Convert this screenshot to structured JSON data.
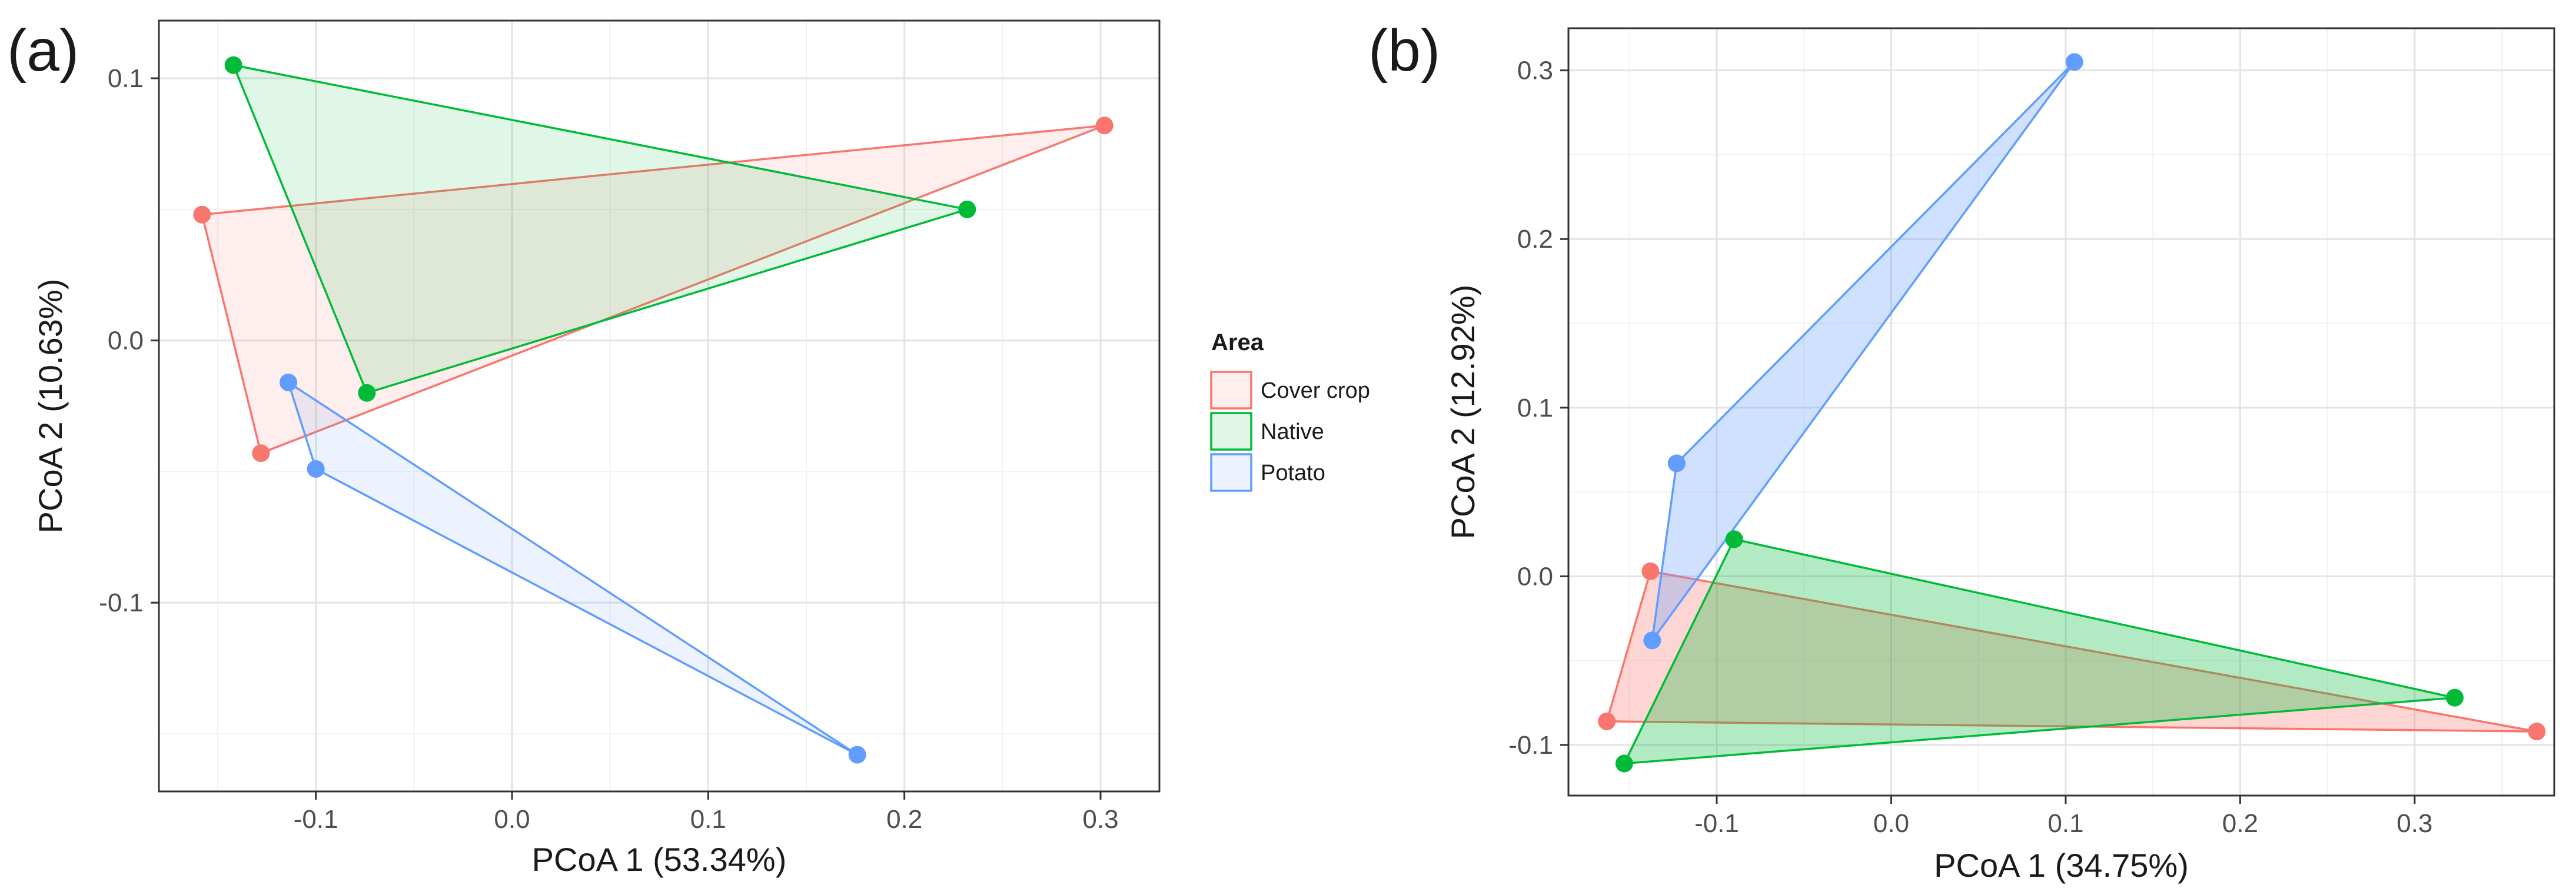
{
  "chart_data": [
    {
      "type": "scatter",
      "panel_label": "(a)",
      "xlabel": "PCoA 1 (53.34%)",
      "ylabel": "PCoA 2 (10.63%)",
      "xlim": [
        -0.18,
        0.33
      ],
      "ylim": [
        -0.172,
        0.122
      ],
      "xticks": [
        -0.1,
        0.0,
        0.1,
        0.2,
        0.3
      ],
      "xtick_labels": [
        "-0.1",
        "0.0",
        "0.1",
        "0.2",
        "0.3"
      ],
      "yticks": [
        -0.1,
        0.0,
        0.1
      ],
      "ytick_labels": [
        "-0.1",
        "0.0",
        "0.1"
      ],
      "grid": true,
      "series": [
        {
          "name": "Cover crop",
          "color": "#F8766D",
          "points": [
            {
              "x": -0.158,
              "y": 0.048
            },
            {
              "x": 0.302,
              "y": 0.082
            },
            {
              "x": -0.128,
              "y": -0.043
            }
          ]
        },
        {
          "name": "Native",
          "color": "#00BA38",
          "points": [
            {
              "x": -0.142,
              "y": 0.105
            },
            {
              "x": 0.232,
              "y": 0.05
            },
            {
              "x": -0.074,
              "y": -0.02
            }
          ]
        },
        {
          "name": "Potato",
          "color": "#619CFF",
          "points": [
            {
              "x": -0.114,
              "y": -0.016
            },
            {
              "x": -0.1,
              "y": -0.049
            },
            {
              "x": 0.176,
              "y": -0.158
            }
          ]
        }
      ]
    },
    {
      "type": "scatter",
      "panel_label": "(b)",
      "xlabel": "PCoA 1 (34.75%)",
      "ylabel": "PCoA 2 (12.92%)",
      "xlim": [
        -0.185,
        0.38
      ],
      "ylim": [
        -0.13,
        0.325
      ],
      "xticks": [
        -0.1,
        0.0,
        0.1,
        0.2,
        0.3
      ],
      "xtick_labels": [
        "-0.1",
        "0.0",
        "0.1",
        "0.2",
        "0.3"
      ],
      "yticks": [
        -0.1,
        0.0,
        0.1,
        0.2,
        0.3
      ],
      "ytick_labels": [
        "-0.1",
        "0.0",
        "0.1",
        "0.2",
        "0.3"
      ],
      "grid": true,
      "series": [
        {
          "name": "Cover crop",
          "color": "#F8766D",
          "points": [
            {
              "x": -0.138,
              "y": 0.003
            },
            {
              "x": 0.37,
              "y": -0.092
            },
            {
              "x": -0.163,
              "y": -0.086
            }
          ]
        },
        {
          "name": "Native",
          "color": "#00BA38",
          "points": [
            {
              "x": -0.09,
              "y": 0.022
            },
            {
              "x": 0.323,
              "y": -0.072
            },
            {
              "x": -0.153,
              "y": -0.111
            }
          ]
        },
        {
          "name": "Potato",
          "color": "#619CFF",
          "points": [
            {
              "x": 0.105,
              "y": 0.305
            },
            {
              "x": -0.123,
              "y": 0.067
            },
            {
              "x": -0.137,
              "y": -0.038
            }
          ]
        }
      ]
    }
  ],
  "legend": {
    "title": "Area",
    "placement": "right of panel (a)",
    "items": [
      {
        "label": "Cover crop",
        "color": "#F8766D"
      },
      {
        "label": "Native",
        "color": "#00BA38"
      },
      {
        "label": "Potato",
        "color": "#619CFF"
      }
    ]
  }
}
